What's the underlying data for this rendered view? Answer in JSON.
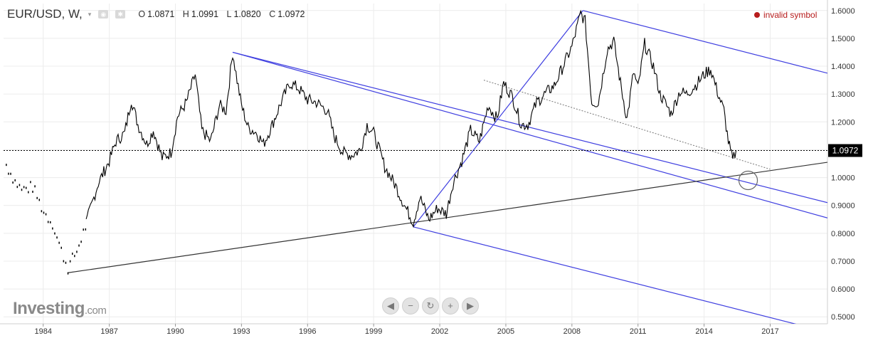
{
  "header": {
    "symbol": "EUR/USD, W,",
    "caret": "▾",
    "ohlc": [
      {
        "k": "O",
        "v": "1.0871"
      },
      {
        "k": "H",
        "v": "1.0991"
      },
      {
        "k": "L",
        "v": "1.0820"
      },
      {
        "k": "C",
        "v": "1.0972"
      }
    ]
  },
  "status": {
    "invalid_label": "invalid symbol"
  },
  "logo": {
    "main": "Investing",
    "suffix": ".com"
  },
  "nav": [
    {
      "name": "scroll-left-icon",
      "glyph": "◀"
    },
    {
      "name": "zoom-out-icon",
      "glyph": "−"
    },
    {
      "name": "reset-icon",
      "glyph": "↻"
    },
    {
      "name": "zoom-in-icon",
      "glyph": "+"
    },
    {
      "name": "scroll-right-icon",
      "glyph": "▶"
    }
  ],
  "colors": {
    "price": "#000000",
    "channel": "#3f3fe0",
    "support": "#333333",
    "guide": "#777777",
    "invalid": "#b71c1c"
  },
  "chart_data": {
    "type": "line",
    "title": "",
    "xlabel": "",
    "ylabel": "",
    "x_ticks": [
      1984,
      1987,
      1990,
      1993,
      1996,
      1999,
      2002,
      2005,
      2008,
      2011,
      2014,
      2017
    ],
    "y_ticks": [
      "0.5000",
      "0.6000",
      "0.7000",
      "0.8000",
      "0.9000",
      "1.0000",
      "1.1000",
      "1.2000",
      "1.3000",
      "1.4000",
      "1.5000",
      "1.6000"
    ],
    "xlim": [
      1982.2,
      2019.6
    ],
    "ylim": [
      0.475,
      1.625
    ],
    "current_price": "1.0972",
    "series": [
      {
        "values": [
          [
            1982.3,
            1.05
          ],
          [
            1982.7,
            0.99
          ],
          [
            1983.0,
            0.96
          ],
          [
            1983.5,
            0.97
          ],
          [
            1984.0,
            0.88
          ],
          [
            1984.4,
            0.84
          ],
          [
            1984.8,
            0.74
          ],
          [
            1985.1,
            0.68
          ],
          [
            1985.5,
            0.74
          ],
          [
            1986.0,
            0.85
          ],
          [
            1986.5,
            0.98
          ],
          [
            1987.0,
            1.06
          ],
          [
            1987.3,
            1.13
          ],
          [
            1987.7,
            1.16
          ],
          [
            1988.0,
            1.28
          ],
          [
            1988.3,
            1.19
          ],
          [
            1988.7,
            1.12
          ],
          [
            1989.0,
            1.17
          ],
          [
            1989.4,
            1.07
          ],
          [
            1989.8,
            1.09
          ],
          [
            1990.1,
            1.22
          ],
          [
            1990.5,
            1.27
          ],
          [
            1990.9,
            1.37
          ],
          [
            1991.2,
            1.17
          ],
          [
            1991.6,
            1.13
          ],
          [
            1992.0,
            1.26
          ],
          [
            1992.3,
            1.24
          ],
          [
            1992.6,
            1.45
          ],
          [
            1992.8,
            1.35
          ],
          [
            1993.0,
            1.26
          ],
          [
            1993.3,
            1.18
          ],
          [
            1993.7,
            1.16
          ],
          [
            1994.0,
            1.12
          ],
          [
            1994.4,
            1.19
          ],
          [
            1994.8,
            1.27
          ],
          [
            1995.2,
            1.34
          ],
          [
            1995.6,
            1.32
          ],
          [
            1996.0,
            1.28
          ],
          [
            1996.4,
            1.27
          ],
          [
            1996.9,
            1.24
          ],
          [
            1997.2,
            1.15
          ],
          [
            1997.6,
            1.09
          ],
          [
            1998.0,
            1.08
          ],
          [
            1998.4,
            1.1
          ],
          [
            1998.7,
            1.19
          ],
          [
            1999.0,
            1.16
          ],
          [
            1999.5,
            1.04
          ],
          [
            2000.0,
            0.97
          ],
          [
            2000.4,
            0.9
          ],
          [
            2000.8,
            0.84
          ],
          [
            2001.1,
            0.93
          ],
          [
            2001.5,
            0.85
          ],
          [
            2001.9,
            0.89
          ],
          [
            2002.3,
            0.87
          ],
          [
            2002.6,
            0.98
          ],
          [
            2003.0,
            1.06
          ],
          [
            2003.4,
            1.17
          ],
          [
            2003.8,
            1.13
          ],
          [
            2004.2,
            1.26
          ],
          [
            2004.6,
            1.21
          ],
          [
            2004.9,
            1.34
          ],
          [
            2005.3,
            1.29
          ],
          [
            2005.7,
            1.19
          ],
          [
            2006.0,
            1.19
          ],
          [
            2006.4,
            1.27
          ],
          [
            2006.9,
            1.31
          ],
          [
            2007.2,
            1.33
          ],
          [
            2007.6,
            1.4
          ],
          [
            2008.0,
            1.47
          ],
          [
            2008.4,
            1.59
          ],
          [
            2008.6,
            1.56
          ],
          [
            2008.9,
            1.27
          ],
          [
            2009.2,
            1.27
          ],
          [
            2009.6,
            1.46
          ],
          [
            2009.9,
            1.49
          ],
          [
            2010.2,
            1.34
          ],
          [
            2010.5,
            1.21
          ],
          [
            2010.8,
            1.38
          ],
          [
            2011.0,
            1.32
          ],
          [
            2011.3,
            1.48
          ],
          [
            2011.7,
            1.4
          ],
          [
            2012.0,
            1.3
          ],
          [
            2012.5,
            1.23
          ],
          [
            2012.9,
            1.31
          ],
          [
            2013.2,
            1.3
          ],
          [
            2013.6,
            1.33
          ],
          [
            2014.0,
            1.37
          ],
          [
            2014.3,
            1.39
          ],
          [
            2014.6,
            1.31
          ],
          [
            2014.9,
            1.24
          ],
          [
            2015.1,
            1.13
          ],
          [
            2015.3,
            1.06
          ],
          [
            2015.45,
            1.0972
          ]
        ]
      }
    ],
    "trendlines": [
      {
        "style": "channel",
        "points": [
          [
            1992.6,
            1.45
          ],
          [
            2019.6,
            0.855
          ]
        ]
      },
      {
        "style": "channel",
        "points": [
          [
            1992.6,
            1.45
          ],
          [
            2019.6,
            0.91
          ]
        ]
      },
      {
        "style": "channel",
        "points": [
          [
            2000.8,
            0.823
          ],
          [
            2019.6,
            0.445
          ]
        ]
      },
      {
        "style": "channel",
        "points": [
          [
            2008.5,
            1.6
          ],
          [
            2019.6,
            1.375
          ]
        ]
      },
      {
        "style": "channel",
        "points": [
          [
            2000.8,
            0.823
          ],
          [
            2008.5,
            1.6
          ]
        ]
      },
      {
        "style": "support",
        "points": [
          [
            1985.1,
            0.658
          ],
          [
            2019.6,
            1.055
          ]
        ]
      },
      {
        "style": "guide",
        "points": [
          [
            2004.0,
            1.35
          ],
          [
            2017.0,
            1.03
          ]
        ]
      }
    ],
    "horizontal_line": 1.0972,
    "highlight_circle": {
      "x": 2016.0,
      "y": 0.99
    },
    "grid": true,
    "legend": "none"
  }
}
